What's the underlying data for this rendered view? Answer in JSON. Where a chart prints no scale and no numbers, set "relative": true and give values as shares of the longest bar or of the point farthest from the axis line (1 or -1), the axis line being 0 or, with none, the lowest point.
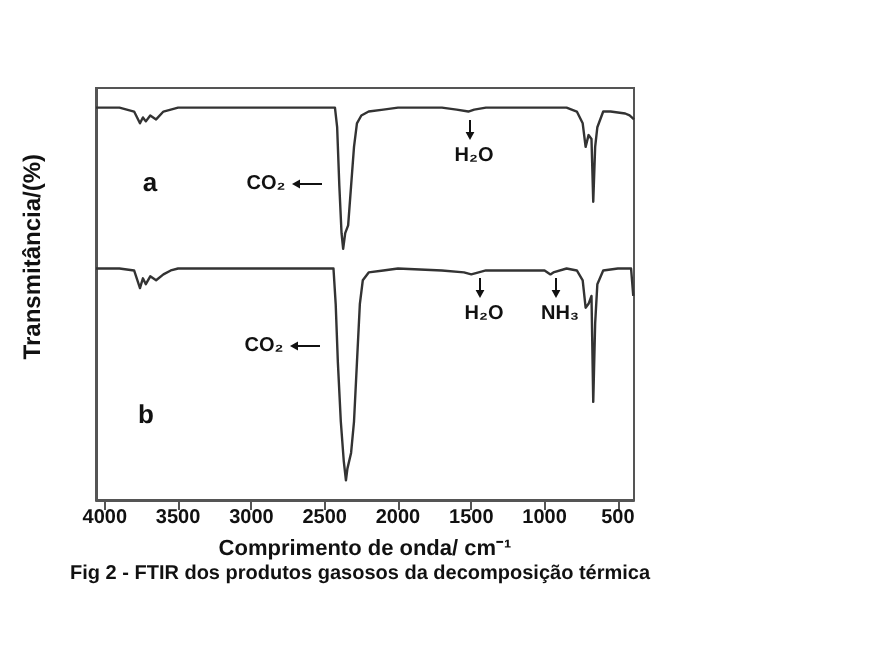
{
  "chart_data": {
    "type": "line",
    "relative": true,
    "xlabel": "Comprimento de onda/ cm⁻¹",
    "ylabel": "Transmitância/(%)",
    "xlim": [
      4060,
      390
    ],
    "xticks": [
      4000,
      3500,
      3000,
      2500,
      2000,
      1500,
      1000,
      500
    ],
    "grid": false,
    "marker": "none",
    "line_style": "solid",
    "series": [
      {
        "color": "#333333",
        "x": [
          4060,
          3900,
          3800,
          3760,
          3740,
          3720,
          3690,
          3650,
          3600,
          3500,
          3000,
          2500,
          2430,
          2415,
          2400,
          2385,
          2374,
          2360,
          2340,
          2320,
          2300,
          2280,
          2250,
          2200,
          2100,
          2000,
          1700,
          1600,
          1520,
          1480,
          1400,
          1000,
          850,
          780,
          740,
          720,
          700,
          680,
          668,
          655,
          640,
          600,
          550,
          450,
          420,
          390
        ],
        "values": [
          1.0,
          1.0,
          0.99,
          0.96,
          0.975,
          0.965,
          0.98,
          0.97,
          0.99,
          1.0,
          1.0,
          1.0,
          1.0,
          0.95,
          0.8,
          0.68,
          0.64,
          0.68,
          0.7,
          0.8,
          0.9,
          0.96,
          0.98,
          0.99,
          0.995,
          1.0,
          1.0,
          0.995,
          0.99,
          0.995,
          1.0,
          1.0,
          1.0,
          0.99,
          0.96,
          0.9,
          0.93,
          0.92,
          0.76,
          0.9,
          0.95,
          0.99,
          0.99,
          0.985,
          0.98,
          0.97
        ]
      },
      {
        "color": "#333333",
        "x": [
          4060,
          3900,
          3800,
          3760,
          3740,
          3720,
          3690,
          3650,
          3600,
          3550,
          3500,
          3000,
          2500,
          2440,
          2425,
          2410,
          2390,
          2370,
          2355,
          2345,
          2320,
          2300,
          2280,
          2260,
          2240,
          2200,
          2100,
          2000,
          1700,
          1550,
          1500,
          1450,
          1400,
          1000,
          960,
          940,
          850,
          780,
          740,
          720,
          700,
          680,
          668,
          655,
          640,
          600,
          500,
          410,
          395
        ],
        "values": [
          0.59,
          0.59,
          0.585,
          0.54,
          0.565,
          0.55,
          0.57,
          0.56,
          0.575,
          0.585,
          0.59,
          0.59,
          0.59,
          0.59,
          0.5,
          0.35,
          0.2,
          0.1,
          0.05,
          0.08,
          0.12,
          0.2,
          0.35,
          0.5,
          0.56,
          0.58,
          0.585,
          0.59,
          0.585,
          0.58,
          0.575,
          0.58,
          0.585,
          0.585,
          0.575,
          0.58,
          0.59,
          0.585,
          0.56,
          0.49,
          0.5,
          0.52,
          0.25,
          0.45,
          0.55,
          0.585,
          0.59,
          0.59,
          0.52
        ]
      }
    ],
    "annotations": [
      "a",
      "CO₂",
      "H₂O",
      "b",
      "CO₂",
      "H₂O",
      "NH₃",
      "Fig 2 - FTIR dos produtos gasosos da decomposição térmica"
    ]
  }
}
